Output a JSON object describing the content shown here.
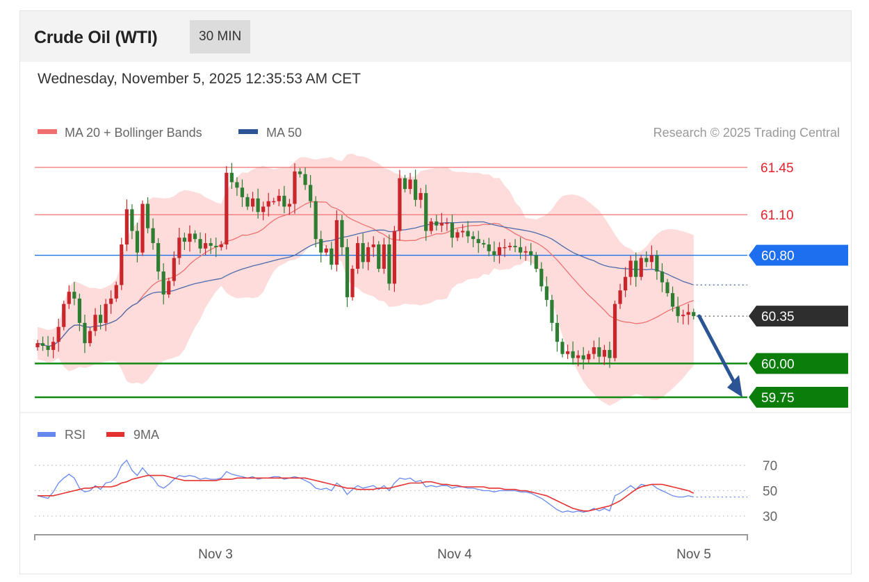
{
  "header": {
    "instrument": "Crude Oil (WTI)",
    "timeframe": "30 MIN"
  },
  "datetime": "Wednesday, November 5, 2025 12:35:53 AM CET",
  "legend": {
    "ma20_bb": "MA 20 + Bollinger Bands",
    "ma50": "MA 50",
    "rsi": "RSI",
    "rsi_ma": "9MA"
  },
  "copyright": "Research © 2025 Trading Central",
  "colors": {
    "ma20": "#f07070",
    "bands": "#fdd0d0",
    "ma50": "#4a6aa8",
    "up": "#c8262b",
    "down": "#2e7d32",
    "resistance": "#f07070",
    "pivot": "#1a73e8",
    "support": "#128a12",
    "last": "#2e2e2e",
    "arrow": "#2a5494",
    "rsi": "#6688ee",
    "rsi_ma": "#e53030"
  },
  "chart_data": [
    {
      "type": "candlestick",
      "x_labels": [
        "Nov 3",
        "Nov 4",
        "Nov 5"
      ],
      "ylim": [
        59.65,
        61.55
      ],
      "levels": [
        {
          "label": "61.45",
          "value": 61.45,
          "kind": "resistance"
        },
        {
          "label": "61.10",
          "value": 61.1,
          "kind": "resistance"
        },
        {
          "label": "60.80",
          "value": 60.8,
          "kind": "pivot"
        },
        {
          "label": "60.35",
          "value": 60.35,
          "kind": "last"
        },
        {
          "label": "60.00",
          "value": 60.0,
          "kind": "support"
        },
        {
          "label": "59.75",
          "value": 59.75,
          "kind": "support"
        }
      ],
      "close": [
        60.15,
        60.13,
        60.1,
        60.16,
        60.27,
        60.44,
        60.53,
        60.48,
        60.3,
        60.15,
        60.24,
        60.36,
        60.3,
        60.44,
        60.48,
        60.58,
        60.88,
        61.14,
        60.98,
        60.82,
        61.18,
        61.0,
        60.89,
        60.68,
        60.51,
        60.61,
        60.78,
        60.93,
        60.9,
        60.96,
        60.92,
        60.85,
        60.89,
        60.87,
        60.86,
        60.88,
        61.41,
        61.34,
        61.3,
        61.23,
        61.16,
        61.22,
        61.12,
        61.16,
        61.2,
        61.2,
        61.24,
        61.16,
        61.18,
        61.42,
        61.4,
        61.32,
        61.2,
        60.92,
        60.82,
        60.85,
        60.73,
        61.06,
        60.86,
        60.49,
        60.7,
        60.89,
        60.75,
        60.86,
        60.88,
        60.7,
        60.88,
        60.59,
        60.98,
        61.37,
        61.29,
        61.36,
        61.21,
        61.26,
        60.98,
        61.05,
        61.02,
        61.04,
        61.04,
        60.93,
        60.97,
        60.98,
        60.94,
        60.92,
        60.89,
        60.88,
        60.83,
        60.8,
        60.86,
        60.86,
        60.87,
        60.86,
        60.82,
        60.83,
        60.8,
        60.7,
        60.57,
        60.47,
        60.3,
        60.16,
        60.07,
        60.09,
        60.04,
        60.06,
        60.03,
        60.07,
        60.12,
        60.05,
        60.1,
        60.04,
        60.44,
        60.54,
        60.64,
        60.76,
        60.64,
        60.78,
        60.75,
        60.8,
        60.68,
        60.6,
        60.52,
        60.42,
        60.35,
        60.36,
        60.38,
        60.35
      ]
    },
    {
      "type": "line",
      "name": "RSI",
      "ylim": [
        15,
        80
      ],
      "ticks": [
        30,
        50,
        70
      ],
      "series": [
        {
          "name": "RSI",
          "values": [
            46,
            45,
            44,
            49,
            56,
            60,
            63,
            60,
            52,
            49,
            50,
            54,
            51,
            56,
            57,
            61,
            70,
            74,
            66,
            62,
            68,
            63,
            60,
            54,
            52,
            55,
            59,
            62,
            61,
            62,
            61,
            59,
            60,
            59,
            59,
            60,
            65,
            63,
            62,
            61,
            60,
            61,
            59,
            60,
            60,
            61,
            61,
            59,
            60,
            61,
            60,
            58,
            56,
            52,
            51,
            52,
            50,
            56,
            53,
            47,
            51,
            54,
            52,
            53,
            54,
            51,
            54,
            50,
            56,
            60,
            59,
            60,
            57,
            58,
            53,
            54,
            53,
            54,
            54,
            52,
            53,
            53,
            52,
            52,
            51,
            50,
            50,
            49,
            50,
            50,
            50,
            50,
            49,
            49,
            48,
            46,
            44,
            41,
            38,
            35,
            33,
            34,
            33,
            34,
            33,
            34,
            36,
            34,
            36,
            34,
            46,
            48,
            51,
            54,
            51,
            55,
            54,
            55,
            52,
            50,
            48,
            46,
            45,
            45,
            46,
            45
          ]
        },
        {
          "name": "9MA",
          "values": [
            46,
            46,
            46,
            46,
            47,
            48,
            49,
            50,
            51,
            52,
            52,
            53,
            53,
            53,
            53,
            54,
            56,
            57,
            59,
            60,
            61,
            62,
            62,
            62,
            62,
            61,
            60,
            59,
            58,
            58,
            58,
            58,
            58,
            58,
            58,
            59,
            59,
            59,
            60,
            60,
            60,
            60,
            60,
            60,
            60,
            60,
            60,
            60,
            60,
            60,
            60,
            60,
            59,
            58,
            57,
            56,
            55,
            54,
            53,
            52,
            52,
            51,
            51,
            51,
            51,
            52,
            52,
            52,
            53,
            54,
            55,
            56,
            56,
            56,
            57,
            57,
            56,
            55,
            55,
            54,
            54,
            53,
            53,
            53,
            53,
            53,
            52,
            52,
            52,
            51,
            51,
            51,
            50,
            50,
            49,
            48,
            47,
            46,
            44,
            42,
            40,
            38,
            36,
            35,
            34,
            34,
            35,
            36,
            37,
            38,
            40,
            42,
            45,
            48,
            51,
            53,
            54,
            55,
            55,
            55,
            54,
            53,
            52,
            51,
            50,
            48
          ]
        }
      ]
    }
  ]
}
